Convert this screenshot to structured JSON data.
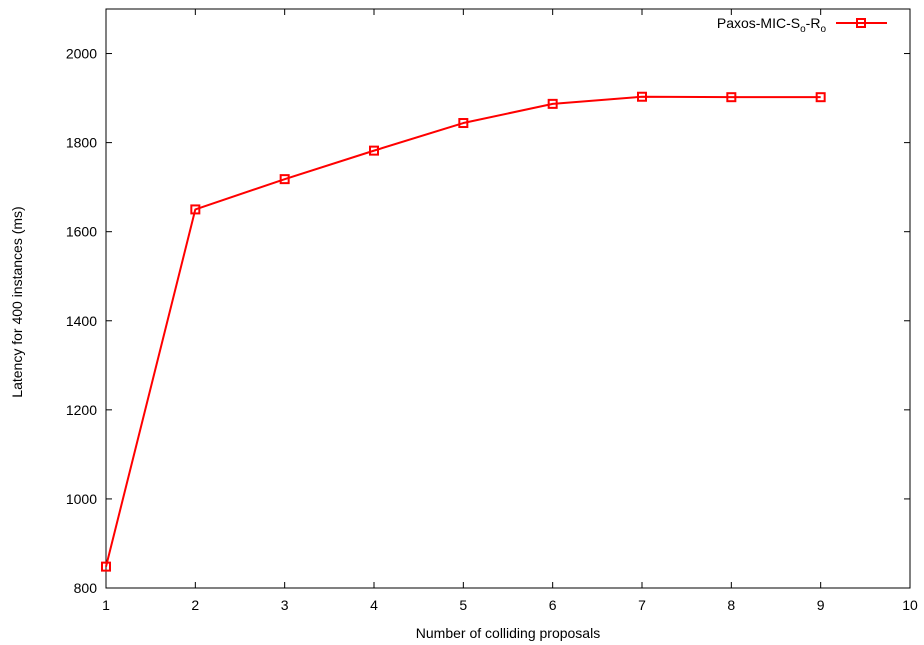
{
  "chart_data": {
    "type": "line",
    "xlabel": "Number of colliding proposals",
    "ylabel": "Latency for 400 instances (ms)",
    "xlim": [
      1,
      10
    ],
    "ylim": [
      800,
      2100
    ],
    "x_ticks": [
      "1",
      "2",
      "3",
      "4",
      "5",
      "6",
      "7",
      "8",
      "9",
      "10"
    ],
    "y_ticks": [
      "800",
      "1000",
      "1200",
      "1400",
      "1600",
      "1800",
      "2000"
    ],
    "grid": false,
    "legend_position": "top-right",
    "series": [
      {
        "name": "Paxos-MIC-S",
        "name_sub1": "o",
        "name_mid": "-R",
        "name_sub2": "o",
        "color": "#ff0000",
        "marker": "square",
        "x": [
          1,
          2,
          3,
          4,
          5,
          6,
          7,
          8,
          9
        ],
        "values": [
          848,
          1650,
          1718,
          1782,
          1844,
          1887,
          1903,
          1902,
          1902
        ]
      }
    ]
  }
}
